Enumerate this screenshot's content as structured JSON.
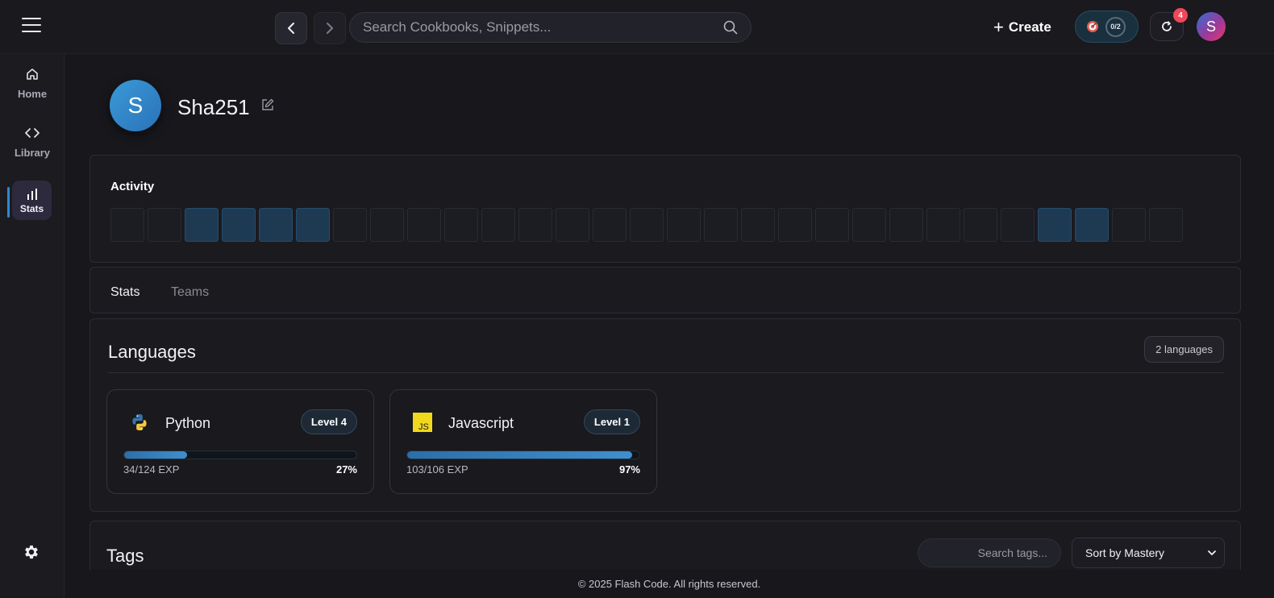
{
  "header": {
    "search_placeholder": "Search Cookbooks, Snippets...",
    "create_label": "Create",
    "goal_progress": "0/2",
    "notification_count": "4",
    "user_initial": "S"
  },
  "sidebar": {
    "items": [
      {
        "label": "Home",
        "icon": "home-icon"
      },
      {
        "label": "Library",
        "icon": "code-icon"
      },
      {
        "label": "Stats",
        "icon": "bar-chart-icon",
        "active": true
      }
    ],
    "settings_icon": "gear-icon"
  },
  "profile": {
    "initial": "S",
    "username": "Sha251"
  },
  "activity": {
    "title": "Activity",
    "cells": [
      0,
      0,
      1,
      1,
      1,
      1,
      0,
      0,
      0,
      0,
      0,
      0,
      0,
      0,
      0,
      0,
      0,
      0,
      0,
      0,
      0,
      0,
      0,
      0,
      0,
      1,
      1,
      0,
      0
    ]
  },
  "tabs": [
    {
      "label": "Stats",
      "active": true
    },
    {
      "label": "Teams",
      "active": false
    }
  ],
  "languages": {
    "title": "Languages",
    "count_label": "2 languages",
    "items": [
      {
        "name": "Python",
        "level": "Level 4",
        "exp": "34/124 EXP",
        "percent_label": "27%",
        "progress": 0.27,
        "icon": "python-icon"
      },
      {
        "name": "Javascript",
        "level": "Level 1",
        "exp": "103/106 EXP",
        "percent_label": "97%",
        "progress": 0.97,
        "icon": "javascript-icon"
      }
    ]
  },
  "tags": {
    "title": "Tags",
    "search_placeholder": "Search tags...",
    "sort_label": "Sort by Mastery"
  },
  "footer": {
    "text": "© 2025 Flash Code. All rights reserved."
  },
  "colors": {
    "accent": "#2f88d2",
    "background": "#17171c",
    "badge": "#f0475a"
  }
}
